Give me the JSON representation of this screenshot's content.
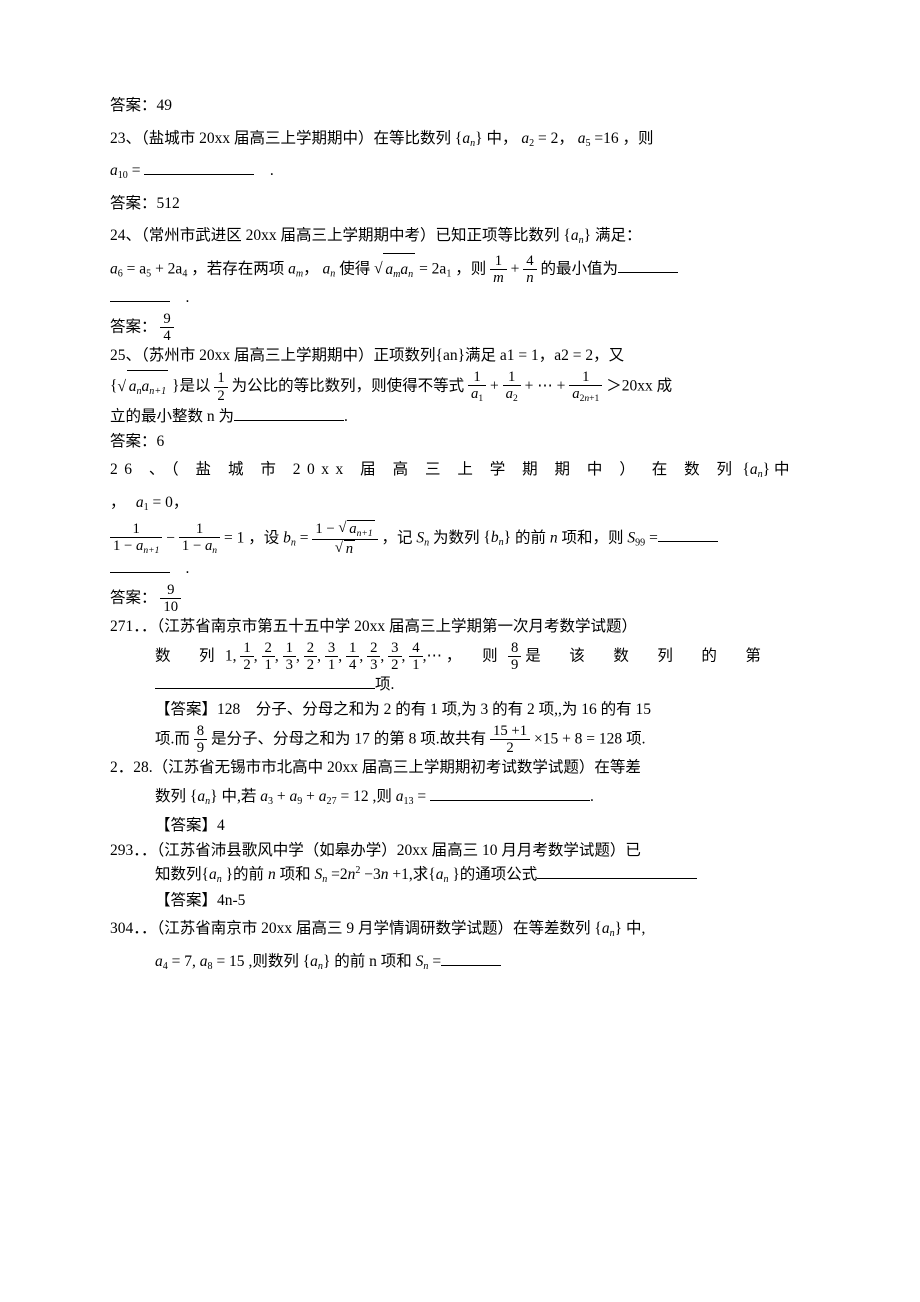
{
  "colors": {
    "text": "#000000",
    "background": "#ffffff",
    "rule": "#000000"
  },
  "fontsize_pt": 11,
  "lines": {
    "ans49": "答案：49",
    "q23_a": "23、（盐城市 20xx 届高三上学期期中）在等比数列",
    "q23_b": "中，",
    "q23_label": "a",
    "q23_n": "n",
    "q23_a2": "= 2",
    "q23_a5": "=16",
    "q23_then": "，则",
    "q23_a10": "a",
    "q23_10": "10",
    "q23_eq": "=",
    "ans512": "答案：512",
    "q24_a": "24、（常州市武进区 20xx 届高三上学期期中考）已知正项等比数列",
    "q24_b": "满足：",
    "q24_eq1a": "a",
    "q24_6": "6",
    "q24_eq1b": "= a",
    "q24_5": "5",
    "q24_eq1c": "+ 2a",
    "q24_4": "4",
    "q24_if": "，若存在两项",
    "q24_am": "a",
    "q24_m": "m",
    "q24_an": "a",
    "q24_nn": "n",
    "q24_mid": "使得",
    "q24_sqrt": "a",
    "q24_eq2": "= 2a",
    "q24_1": "1",
    "q24_then": "，则",
    "q24_min": "的最小值为",
    "ans94": "答案：",
    "q25_a": "25、（苏州市 20xx 届高三上学期期中）正项数列{an}满足 a1 = 1，a2 = 2，又",
    "q25_b1": "{",
    "q25_b2": "}是以",
    "q25_b3": "为公比的等比数列，则使得不等式",
    "q25_tail": "＞20xx 成",
    "q25_c": "立的最小整数 n 为",
    "ans6": "答案：6",
    "q26_a": "26 、（ 盐 城 市 20xx 届 高 三 上 学 期 期 中 ） 在 数 列",
    "q26_b": "中 ，",
    "q26_a1": "= 0",
    "q26_eq1": "= 1",
    "q26_set": "，设",
    "q26_bn": "b",
    "q26_bneq": "=",
    "q26_rec": "，记",
    "q26_sn": "S",
    "q26_rec2": "为数列",
    "q26_rec3": "的前",
    "q26_nlab": "n",
    "q26_rec4": "项和，则",
    "q26_s99": "S",
    "q26_99": "99",
    "q26_eq2": "=",
    "ans910": "答案：",
    "q271_a": "271．．（江苏省南京市第五十五中学 20xx 届高三上学期第一次月考数学试题）",
    "q271_seq_lbl": "数　列",
    "q271_seq_tail": "，　则",
    "q271_seq_tail2": "是　该　数　列　的　第",
    "q271_blank": "项.",
    "q271_ans1": "【答案】128　分子、分母之和为 2 的有 1 项,为 3 的有 2 项,,为 16 的有 15",
    "q271_ans2a": "项.而",
    "q271_ans2b": "是分子、分母之和为 17 的第 8 项.故共有",
    "q271_ans2c": "×15 + 8 = 128",
    "q271_ans2d": "项.",
    "q228_a": "2．28.（江苏省无锡市市北高中 20xx 届高三上学期期初考试数学试题）在等差",
    "q228_b": "数列",
    "q228_c": "中,若",
    "q228_eq": "= 12",
    "q228_d": ",则",
    "q228_a13": "a",
    "q228_13": "13",
    "q228_e": "=",
    "q228_ans": "【答案】4",
    "q293_a": "293．．（江苏省沛县歌风中学（如皋办学）20xx 届高三 10 月月考数学试题）已",
    "q293_b": "知数列{",
    "q293_c": "}的前",
    "q293_d": "项和",
    "q293_e": "=2",
    "q293_f": "−3",
    "q293_g": "+1,求{",
    "q293_h": "}的通项公式",
    "q293_ans": "【答案】4n-5",
    "q304_a": "304．．（江苏省南京市 20xx 届高三 9 月学情调研数学试题）在等差数列",
    "q304_b": "中,",
    "q304_eq1": "= 7,",
    "q304_eq2": "= 15",
    "q304_c": ",则数列",
    "q304_d": "的前 n 项和",
    "q304_sn": "S",
    "q304_eq3": "="
  }
}
